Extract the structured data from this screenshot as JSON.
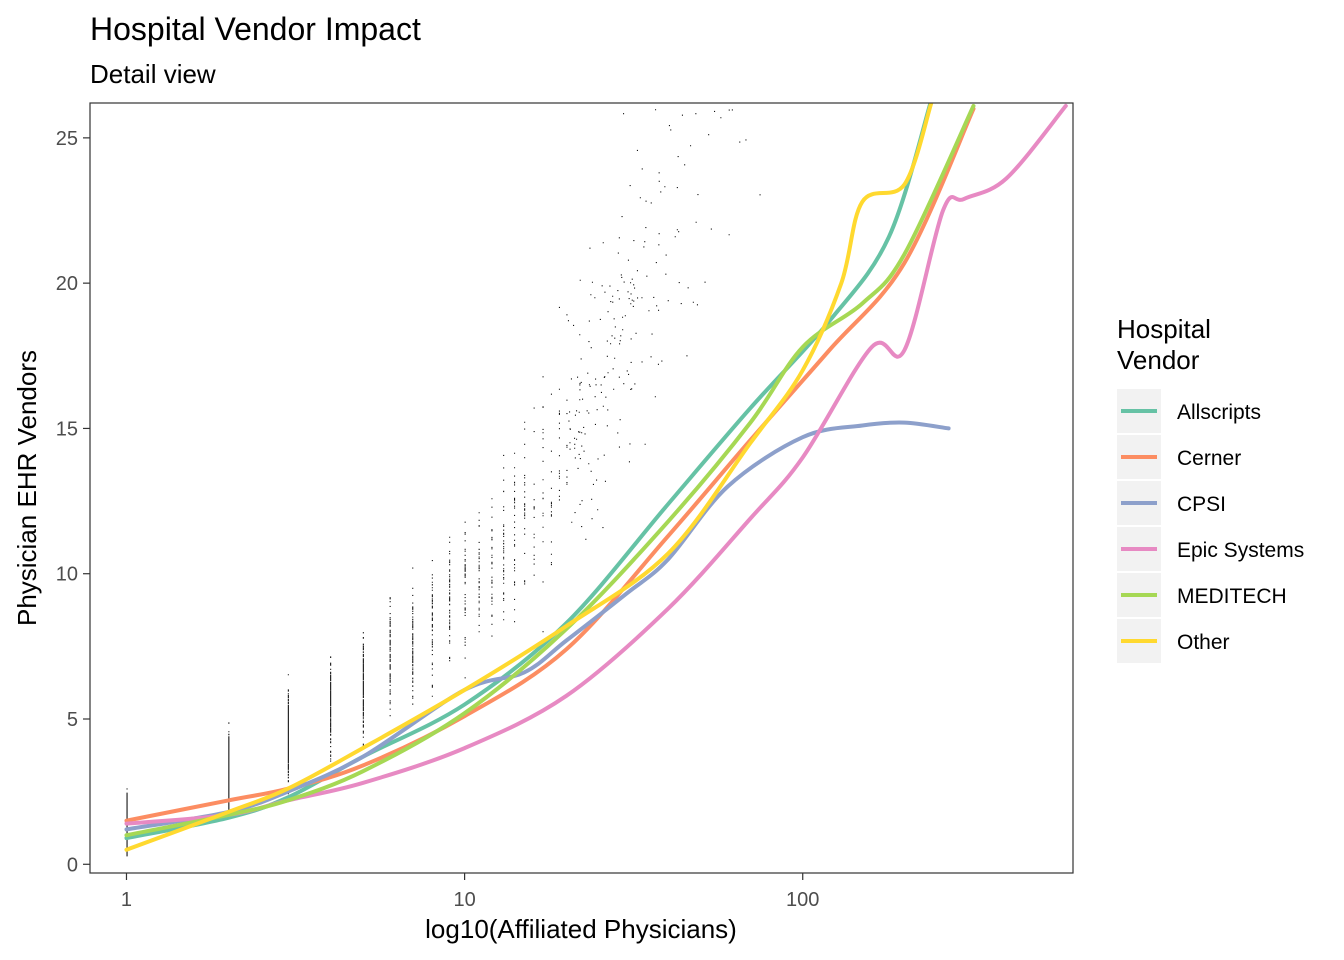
{
  "chart_data": {
    "type": "scatter",
    "title": "Hospital Vendor Impact",
    "subtitle": "Detail view",
    "xlabel": "log10(Affiliated Physicians)",
    "ylabel": "Physician EHR Vendors",
    "x_scale": "log10",
    "xlim": [
      0.78,
      630
    ],
    "ylim": [
      -0.3,
      26.2
    ],
    "x_ticks": [
      {
        "value": 1,
        "label": "1"
      },
      {
        "value": 10,
        "label": "10"
      },
      {
        "value": 100,
        "label": "100"
      }
    ],
    "y_ticks": [
      {
        "value": 0,
        "label": "0"
      },
      {
        "value": 5,
        "label": "5"
      },
      {
        "value": 10,
        "label": "10"
      },
      {
        "value": 15,
        "label": "15"
      },
      {
        "value": 20,
        "label": "20"
      },
      {
        "value": 25,
        "label": "25"
      }
    ],
    "grid": false,
    "legend": {
      "title_lines": [
        "Hospital",
        "Vendor"
      ],
      "position": "right"
    },
    "series": [
      {
        "name": "Allscripts",
        "color": "#66c2a5",
        "x": [
          1,
          2,
          3,
          5,
          10,
          20,
          40,
          70,
          120,
          180,
          240
        ],
        "y": [
          0.9,
          1.6,
          2.3,
          3.7,
          5.5,
          8.3,
          12.4,
          15.7,
          18.7,
          21.6,
          26.3
        ]
      },
      {
        "name": "Cerner",
        "color": "#fc8d62",
        "x": [
          1,
          2,
          3,
          5,
          10,
          20,
          40,
          70,
          120,
          200,
          320
        ],
        "y": [
          1.5,
          2.2,
          2.6,
          3.4,
          5.1,
          7.4,
          11.3,
          14.6,
          17.7,
          20.7,
          26.0
        ]
      },
      {
        "name": "CPSI",
        "color": "#8da0cb",
        "x": [
          1,
          2,
          3,
          5,
          10,
          15,
          20,
          30,
          40,
          60,
          100,
          150,
          200,
          270
        ],
        "y": [
          1.2,
          1.8,
          2.5,
          3.7,
          6.0,
          6.6,
          7.7,
          9.3,
          10.5,
          13.0,
          14.7,
          15.1,
          15.2,
          15.0
        ]
      },
      {
        "name": "Epic Systems",
        "color": "#e78ac3",
        "x": [
          1,
          2,
          3,
          5,
          10,
          20,
          40,
          70,
          100,
          160,
          200,
          260,
          300,
          400,
          600
        ],
        "y": [
          1.4,
          1.7,
          2.2,
          2.8,
          4.0,
          5.8,
          8.8,
          11.9,
          14.0,
          17.8,
          17.7,
          22.5,
          22.9,
          23.6,
          26.1
        ]
      },
      {
        "name": "MEDITECH",
        "color": "#a6d854",
        "x": [
          1,
          2,
          3,
          5,
          10,
          20,
          40,
          70,
          100,
          150,
          200,
          320
        ],
        "y": [
          1.0,
          1.7,
          2.2,
          3.2,
          5.2,
          8.1,
          11.8,
          15.2,
          17.8,
          19.3,
          21.0,
          26.1
        ]
      },
      {
        "name": "Other",
        "color": "#ffd92f",
        "x": [
          1,
          2,
          3,
          5,
          10,
          20,
          40,
          70,
          100,
          130,
          150,
          200,
          240
        ],
        "y": [
          0.5,
          1.8,
          2.6,
          4.0,
          6.0,
          8.2,
          10.7,
          14.5,
          17.0,
          20.0,
          22.8,
          23.4,
          26.2
        ]
      }
    ]
  }
}
